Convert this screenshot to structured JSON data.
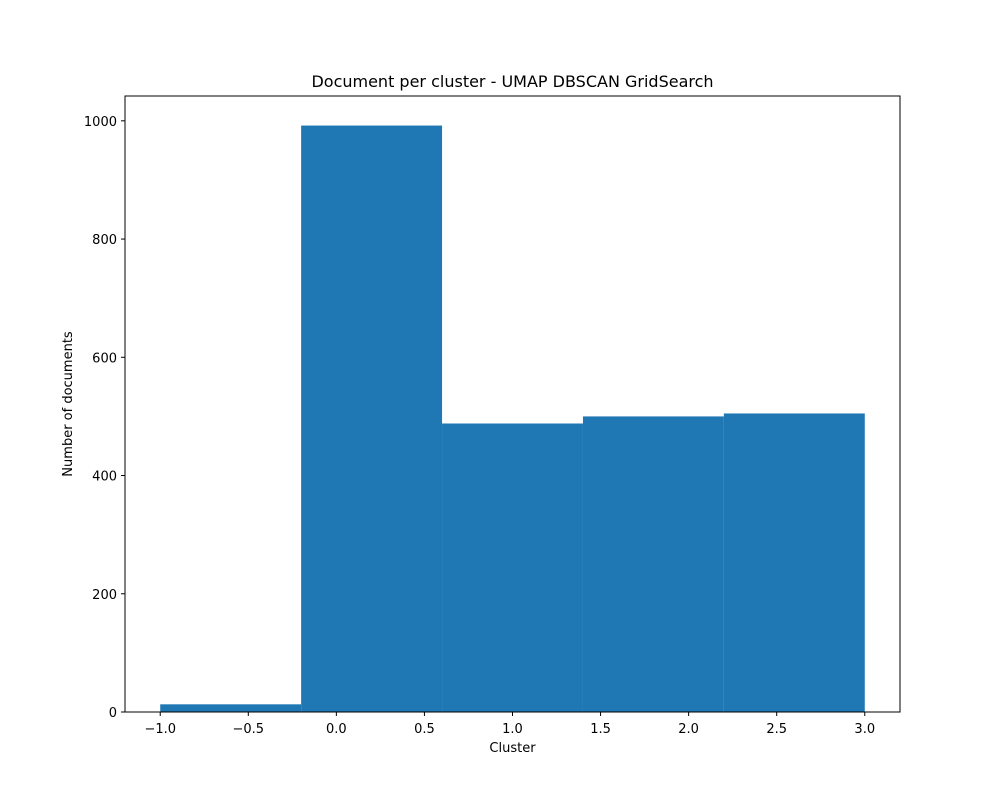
{
  "chart_data": {
    "type": "bar",
    "title": "Document per cluster - UMAP DBSCAN GridSearch",
    "xlabel": "Cluster",
    "ylabel": "Number of documents",
    "bin_edges": [
      -1.0,
      -0.2,
      0.6,
      1.4,
      2.2,
      3.0
    ],
    "values": [
      13,
      992,
      488,
      500,
      505
    ],
    "xlim": [
      -1.2,
      3.2
    ],
    "ylim": [
      0,
      1042
    ],
    "xticks": [
      -1.0,
      -0.5,
      0.0,
      0.5,
      1.0,
      1.5,
      2.0,
      2.5,
      3.0
    ],
    "xtick_labels": [
      "−1.0",
      "−0.5",
      "0.0",
      "0.5",
      "1.0",
      "1.5",
      "2.0",
      "2.5",
      "3.0"
    ],
    "yticks": [
      0,
      200,
      400,
      600,
      800,
      1000
    ],
    "ytick_labels": [
      "0",
      "200",
      "400",
      "600",
      "800",
      "1000"
    ],
    "bar_color": "#1f77b4",
    "grid": false,
    "legend": false
  }
}
